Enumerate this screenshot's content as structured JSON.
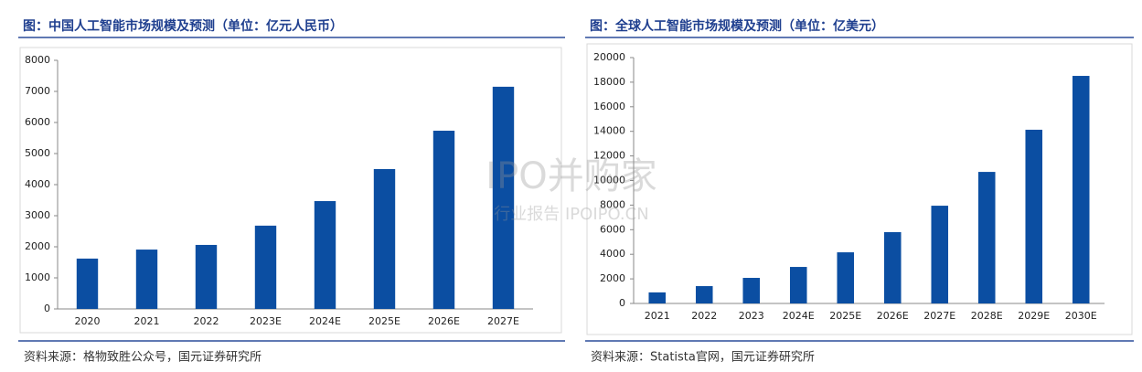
{
  "chart_data": [
    {
      "type": "bar",
      "title": "图：中国人工智能市场规模及预测（单位：亿元人民币）",
      "categories": [
        "2020",
        "2021",
        "2022",
        "2023E",
        "2024E",
        "2025E",
        "2026E",
        "2027E"
      ],
      "values": [
        1620,
        1910,
        2060,
        2680,
        3470,
        4500,
        5735,
        7150
      ],
      "color": "#0b4ea2",
      "ylim": [
        0,
        8000
      ],
      "yticks": [
        0,
        1000,
        2000,
        3000,
        4000,
        5000,
        6000,
        7000,
        8000
      ],
      "source": "资料来源：格物致胜公众号，国元证券研究所"
    },
    {
      "type": "bar",
      "title": "图：全球人工智能市场规模及预测（单位：亿美元）",
      "categories": [
        "2021",
        "2022",
        "2023",
        "2024E",
        "2025E",
        "2026E",
        "2027E",
        "2028E",
        "2029E",
        "2030E"
      ],
      "values": [
        900,
        1410,
        2080,
        2970,
        4160,
        5800,
        7950,
        10700,
        14130,
        18510
      ],
      "color": "#0b4ea2",
      "ylim": [
        0,
        20000
      ],
      "yticks": [
        0,
        2000,
        4000,
        6000,
        8000,
        10000,
        12000,
        14000,
        16000,
        18000,
        20000
      ],
      "source": "资料来源：Statista官网，国元证券研究所"
    }
  ],
  "watermark": {
    "brand": "IPO并购家",
    "sub": "行业报告 IPOIPO.CN"
  }
}
